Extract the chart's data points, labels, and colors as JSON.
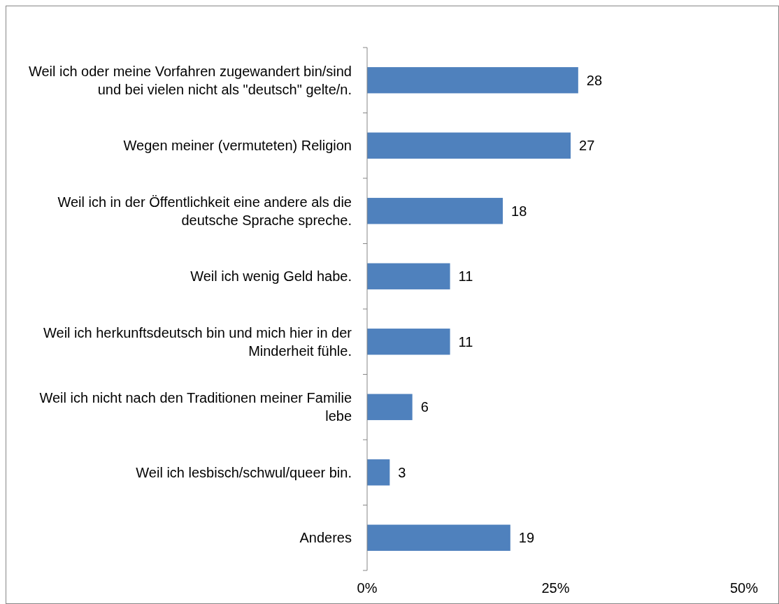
{
  "chart_data": {
    "type": "bar",
    "orientation": "horizontal",
    "categories": [
      "Weil ich oder meine Vorfahren zugewandert bin/sind und bei vielen nicht als \"deutsch\" gelte/n.",
      "Wegen meiner (vermuteten) Religion",
      "Weil ich in der Öffentlichkeit eine andere als die deutsche Sprache spreche.",
      "Weil ich wenig Geld habe.",
      "Weil ich herkunftsdeutsch bin und mich hier in der Minderheit fühle.",
      "Weil ich nicht nach den Traditionen meiner Familie lebe",
      "Weil ich lesbisch/schwul/queer bin.",
      "Anderes"
    ],
    "values": [
      28,
      27,
      18,
      11,
      11,
      6,
      3,
      19
    ],
    "color": "#4f81bd",
    "xlim": [
      0,
      50
    ],
    "xticks": [
      {
        "value": 0,
        "label": "0%"
      },
      {
        "value": 25,
        "label": "25%"
      },
      {
        "value": 50,
        "label": "50%"
      }
    ],
    "data_labels": true,
    "grid": false
  }
}
